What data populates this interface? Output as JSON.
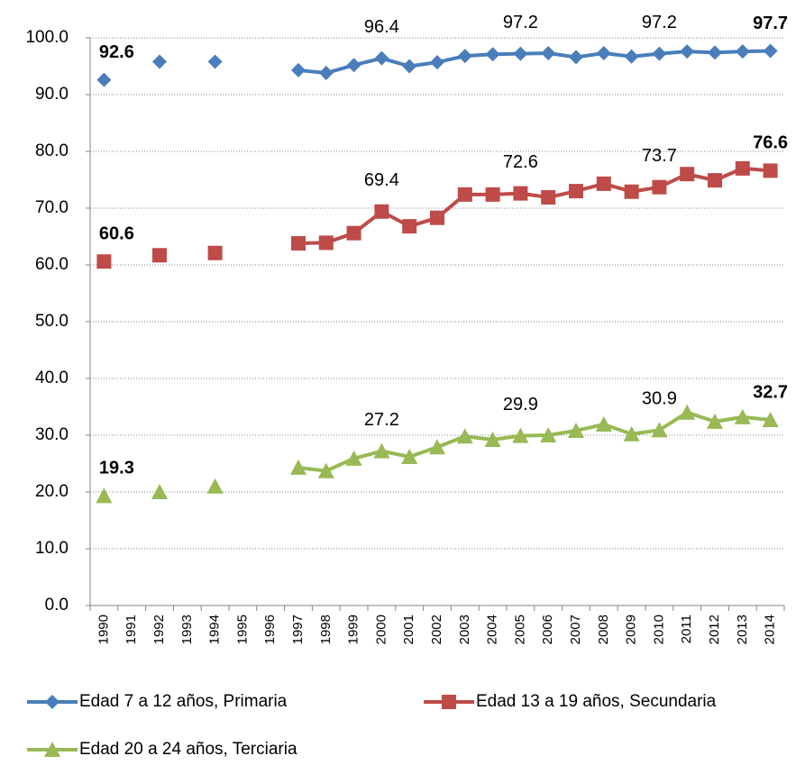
{
  "chart_data": {
    "type": "line",
    "categories": [
      "1990",
      "1991",
      "1992",
      "1993",
      "1994",
      "1995",
      "1996",
      "1997",
      "1998",
      "1999",
      "2000",
      "2001",
      "2002",
      "2003",
      "2004",
      "2005",
      "2006",
      "2007",
      "2008",
      "2009",
      "2010",
      "2011",
      "2012",
      "2013",
      "2014"
    ],
    "ylim": [
      0,
      100
    ],
    "yticks": [
      {
        "value": 0,
        "label": "0.0"
      },
      {
        "value": 10,
        "label": "10.0"
      },
      {
        "value": 20,
        "label": "20.0"
      },
      {
        "value": 30,
        "label": "30.0"
      },
      {
        "value": 40,
        "label": "40.0"
      },
      {
        "value": 50,
        "label": "50.0"
      },
      {
        "value": 60,
        "label": "60.0"
      },
      {
        "value": 70,
        "label": "70.0"
      },
      {
        "value": 80,
        "label": "80.0"
      },
      {
        "value": 90,
        "label": "90.0"
      },
      {
        "value": 100,
        "label": "100.0"
      }
    ],
    "grid": true,
    "legend": "bottom",
    "bold_label_indices": [
      0,
      24
    ],
    "series": [
      {
        "name": "Edad 7 a 12 años, Primaria",
        "color": "#4a7ebb",
        "marker": "diamond",
        "values": [
          92.6,
          null,
          95.8,
          null,
          95.8,
          null,
          null,
          94.3,
          93.8,
          95.2,
          96.4,
          95.0,
          95.7,
          96.8,
          97.1,
          97.2,
          97.3,
          96.6,
          97.3,
          96.7,
          97.2,
          97.6,
          97.4,
          97.6,
          97.7
        ],
        "value_labels": [
          "92.6",
          null,
          null,
          null,
          null,
          null,
          null,
          null,
          null,
          null,
          "96.4",
          null,
          null,
          null,
          null,
          "97.2",
          null,
          null,
          null,
          null,
          "97.2",
          null,
          null,
          null,
          "97.7"
        ]
      },
      {
        "name": "Edad 13 a 19 años, Secundaria",
        "color": "#be4b48",
        "marker": "square",
        "values": [
          60.6,
          null,
          61.7,
          null,
          62.1,
          null,
          null,
          63.8,
          63.9,
          65.6,
          69.4,
          66.8,
          68.3,
          72.4,
          72.4,
          72.6,
          71.9,
          73.0,
          74.3,
          72.9,
          73.7,
          76.0,
          74.9,
          77.0,
          76.6
        ],
        "value_labels": [
          "60.6",
          null,
          null,
          null,
          null,
          null,
          null,
          null,
          null,
          null,
          "69.4",
          null,
          null,
          null,
          null,
          "72.6",
          null,
          null,
          null,
          null,
          "73.7",
          null,
          null,
          null,
          "76.6"
        ]
      },
      {
        "name": "Edad 20 a 24 años, Terciaria",
        "color": "#98b954",
        "marker": "triangle",
        "values": [
          19.3,
          null,
          20.0,
          null,
          21.0,
          null,
          null,
          24.3,
          23.7,
          25.9,
          27.2,
          26.2,
          27.9,
          29.8,
          29.2,
          29.9,
          30.0,
          30.8,
          31.9,
          30.2,
          30.9,
          34.0,
          32.4,
          33.2,
          32.7
        ],
        "value_labels": [
          "19.3",
          null,
          null,
          null,
          null,
          null,
          null,
          null,
          null,
          null,
          "27.2",
          null,
          null,
          null,
          null,
          "29.9",
          null,
          null,
          null,
          null,
          "30.9",
          null,
          null,
          null,
          "32.7"
        ]
      }
    ]
  }
}
